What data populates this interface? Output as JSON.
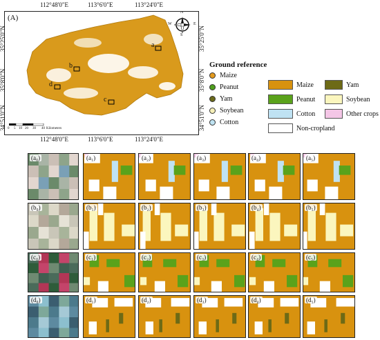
{
  "map": {
    "panel_label": "(A)",
    "top_ticks": [
      "112°48'0\"E",
      "113°6'0\"E",
      "113°24'0\"E"
    ],
    "bottom_ticks": [
      "112°48'0\"E",
      "113°6'0\"E",
      "113°24'0\"E"
    ],
    "left_ticks": [
      "35°25'0\"N",
      "35°8'0\"N",
      "34°51'0\"N"
    ],
    "right_ticks": [
      "35°25'0\"N",
      "35°8'0\"N",
      "34°51'0\"N"
    ],
    "sites": [
      "a",
      "b",
      "c",
      "d"
    ],
    "scale_numbers": [
      "0",
      "5",
      "10",
      "20",
      "30",
      "40"
    ],
    "scale_unit": "Kilometers",
    "north_letters": [
      "N",
      "E",
      "S",
      "W"
    ]
  },
  "ground_reference": {
    "title": "Ground reference",
    "items": [
      {
        "label": "Maize",
        "color": "#e39a1e"
      },
      {
        "label": "Peanut",
        "color": "#4f9f1e"
      },
      {
        "label": "Yam",
        "color": "#6b6a1b"
      },
      {
        "label": "Soybean",
        "color": "#f6f0b8"
      },
      {
        "label": "Cotton",
        "color": "#bfe3f2"
      }
    ]
  },
  "class_legend": {
    "items": [
      {
        "label": "Maize",
        "color": "#d8920f"
      },
      {
        "label": "Yam",
        "color": "#6d6a16"
      },
      {
        "label": "Peanut",
        "color": "#5aa21b"
      },
      {
        "label": "Soybean",
        "color": "#fbf6be"
      },
      {
        "label": "Cotton",
        "color": "#bfe2f3"
      },
      {
        "label": "Other crops",
        "color": "#f4c6e6"
      },
      {
        "label": "Non-cropland",
        "color": "#ffffff"
      }
    ]
  },
  "grid": {
    "rows": [
      {
        "image_label": "(a₀)",
        "maps": [
          "(a₁)",
          "(a₂)",
          "(a₃)",
          "(a₄)",
          "(a₅)"
        ]
      },
      {
        "image_label": "(b₀)",
        "maps": [
          "(b₁)",
          "(b₂)",
          "(b₃)",
          "(b₄)",
          "(b₅)"
        ]
      },
      {
        "image_label": "(c₀)",
        "maps": [
          "(c₁)",
          "(c₂)",
          "(c₃)",
          "(c₄)",
          "(c₅)"
        ]
      },
      {
        "image_label": "(d₀)",
        "maps": [
          "(d₁)",
          "(d₂)",
          "(d₃)",
          "(d₄)",
          "(d₅)"
        ]
      }
    ]
  }
}
